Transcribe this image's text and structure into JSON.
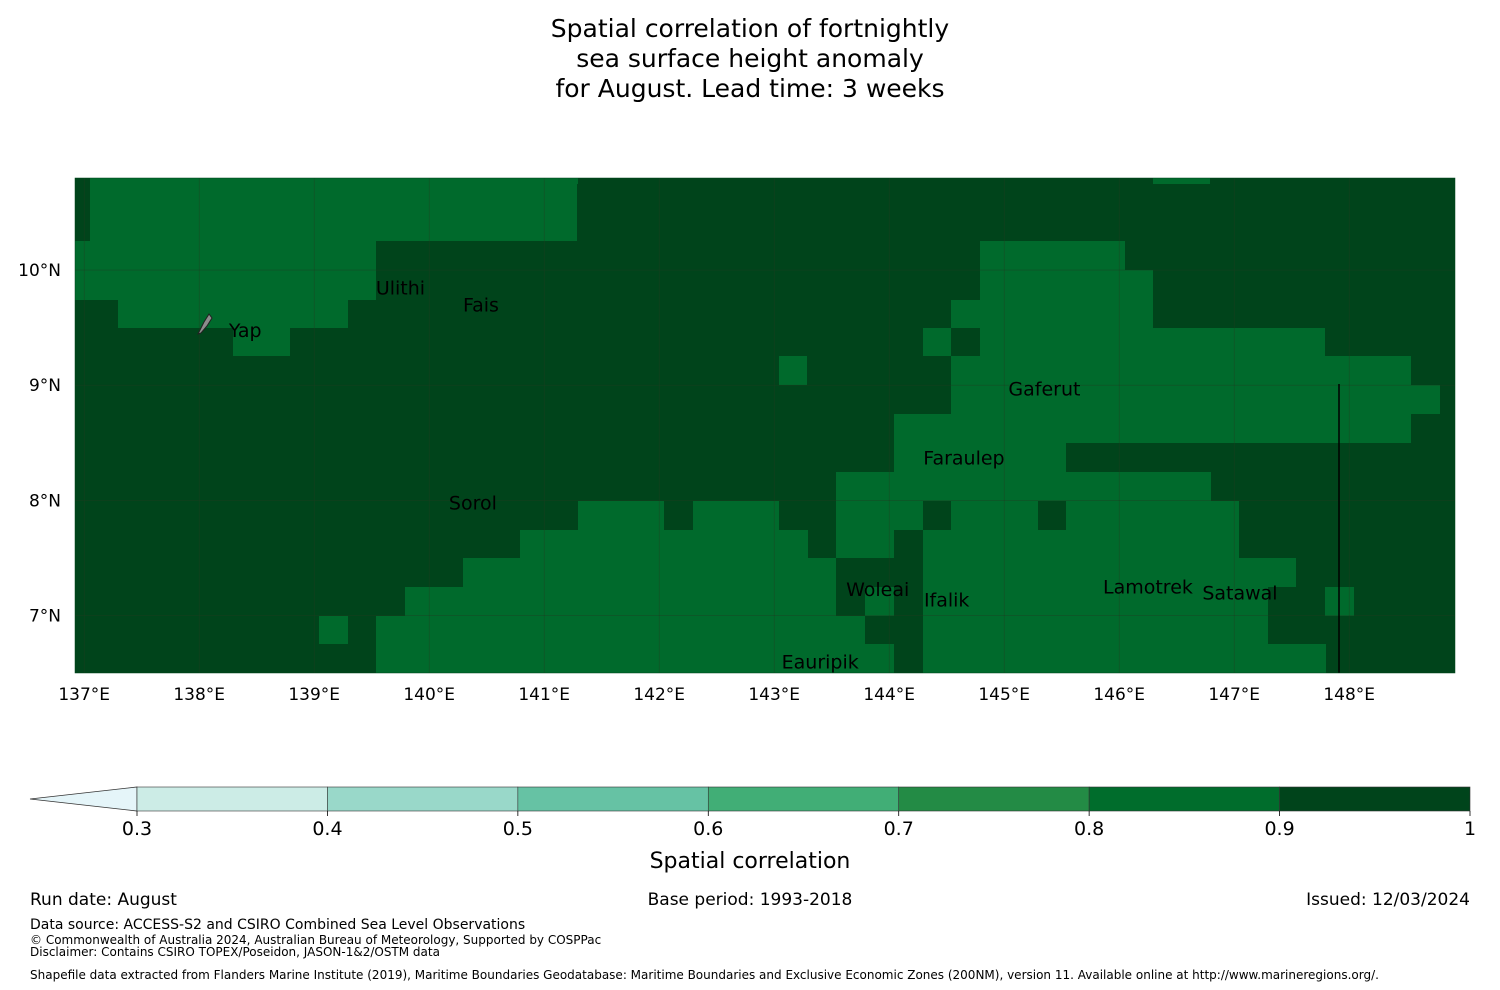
{
  "title_lines": [
    "Spatial correlation of fortnightly",
    "sea surface height anomaly",
    " for August. Lead time: 3 weeks"
  ],
  "map": {
    "lon_labels": [
      "137°E",
      "138°E",
      "139°E",
      "140°E",
      "141°E",
      "142°E",
      "143°E",
      "144°E",
      "145°E",
      "146°E",
      "147°E",
      "148°E"
    ],
    "lat_labels": [
      "10°N",
      "9°N",
      "8°N",
      "7°N"
    ],
    "places": [
      {
        "name": "Ulithi",
        "lon": 139.75,
        "lat": 9.85
      },
      {
        "name": "Fais",
        "lon": 140.45,
        "lat": 9.7
      },
      {
        "name": "Yap",
        "lon": 138.4,
        "lat": 9.48
      },
      {
        "name": "Gaferut",
        "lon": 145.35,
        "lat": 8.97
      },
      {
        "name": "Faraulep",
        "lon": 144.65,
        "lat": 8.37
      },
      {
        "name": "Sorol",
        "lon": 140.38,
        "lat": 7.98
      },
      {
        "name": "Woleai",
        "lon": 143.9,
        "lat": 7.23
      },
      {
        "name": "Ifalik",
        "lon": 144.5,
        "lat": 7.14
      },
      {
        "name": "Lamotrek",
        "lon": 146.25,
        "lat": 7.25
      },
      {
        "name": "Satawal",
        "lon": 147.05,
        "lat": 7.2
      },
      {
        "name": "Eauripik",
        "lon": 143.4,
        "lat": 6.6
      }
    ],
    "colors": {
      "band_0.8_0.9": "#006a2c",
      "band_0.9_1": "#00441b",
      "grid": "#1f3a22",
      "land": "#8c8c8c"
    }
  },
  "colorbar": {
    "label": "Spatial correlation",
    "ticks": [
      "0.3",
      "0.4",
      "0.5",
      "0.6",
      "0.7",
      "0.8",
      "0.9",
      "1"
    ],
    "colors": [
      "#e5f5f9",
      "#ccece6",
      "#99d8c9",
      "#66c2a4",
      "#41ae76",
      "#238b45",
      "#006d2c",
      "#00441b"
    ]
  },
  "footer": {
    "run_date": "Run date: August",
    "base_period": "Base period: 1993-2018",
    "issued": "Issued: 12/03/2024",
    "data_source": "Data source: ACCESS-S2 and CSIRO Combined Sea Level Observations",
    "copyright": "© Commonwealth of Australia 2024, Australian Bureau of Meteorology, Supported by COSPPac",
    "disclaimer": "Disclaimer: Contains CSIRO TOPEX/Poseidon, JASON-1&2/OSTM data",
    "shapefile": "Shapefile data extracted from Flanders Marine Institute (2019), Maritime Boundaries Geodatabase: Maritime Boundaries and Exclusive Economic Zones (200NM), version 11. Available online at http://www.marineregions.org/."
  }
}
